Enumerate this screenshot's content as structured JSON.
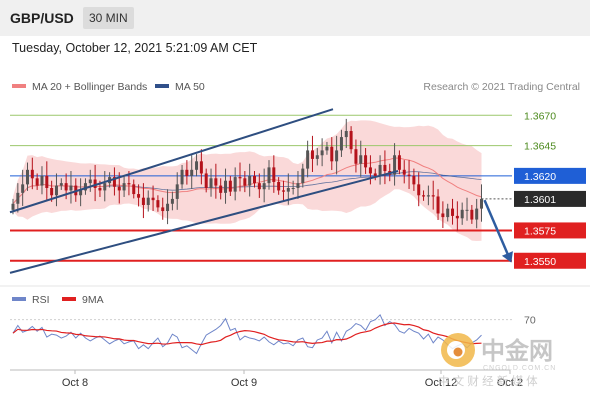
{
  "header": {
    "symbol": "GBP/USD",
    "timeframe": "30 MIN",
    "datetime": "Tuesday, October 12, 2021 5:21:09 AM CET"
  },
  "legend": {
    "ma20_label": "MA 20 + Bollinger Bands",
    "ma50_label": "MA 50",
    "credit": "Research © 2021 Trading Central",
    "rsi_label": "RSI",
    "rsi_ma_label": "9MA"
  },
  "colors": {
    "bull": "#555555",
    "bear": "#b5121b",
    "band": "#f7c4c4",
    "ma20": "#f08080",
    "ma50": "#30508a",
    "resistance": "#9bc76b",
    "support": "#e02020",
    "pivot": "#1f5fd6",
    "channel": "#2e4e80",
    "rsi": "#6f86c9",
    "rsi_ma": "#e02020"
  },
  "watermark": {
    "name": "中金网",
    "domain": "CNGOLD.COM.CN",
    "tagline": "中 文 财 经 新 媒 体"
  },
  "chart_data": {
    "type": "candlestick",
    "y_range": [
      1.353,
      1.369
    ],
    "x_labels": [
      "Oct 8",
      "Oct 9",
      "Oct 12",
      "Oct 2"
    ],
    "levels": [
      {
        "value": 1.367,
        "label": "1.3670",
        "kind": "resistance"
      },
      {
        "value": 1.3645,
        "label": "1.3645",
        "kind": "resistance"
      },
      {
        "value": 1.362,
        "label": "1.3620",
        "kind": "pivot"
      },
      {
        "value": 1.3601,
        "label": "1.3601",
        "kind": "last"
      },
      {
        "value": 1.3575,
        "label": "1.3575",
        "kind": "support"
      },
      {
        "value": 1.355,
        "label": "1.3550",
        "kind": "support"
      }
    ],
    "rsi_levels": [
      70
    ],
    "rsi_level_labels": [
      "70"
    ],
    "close": [
      1.3597,
      1.3606,
      1.3613,
      1.3625,
      1.3618,
      1.3612,
      1.362,
      1.361,
      1.3604,
      1.3612,
      1.3614,
      1.3608,
      1.3612,
      1.3604,
      1.3608,
      1.3614,
      1.3617,
      1.361,
      1.3608,
      1.3614,
      1.3619,
      1.3611,
      1.3608,
      1.3614,
      1.3613,
      1.3605,
      1.3602,
      1.3596,
      1.3602,
      1.36,
      1.3594,
      1.3591,
      1.3597,
      1.3601,
      1.3613,
      1.3625,
      1.362,
      1.3625,
      1.3632,
      1.3622,
      1.361,
      1.3618,
      1.3612,
      1.3606,
      1.3616,
      1.3607,
      1.3619,
      1.3618,
      1.3612,
      1.362,
      1.3614,
      1.3609,
      1.3614,
      1.3627,
      1.3615,
      1.3608,
      1.3607,
      1.361,
      1.361,
      1.3614,
      1.3626,
      1.3641,
      1.3634,
      1.3637,
      1.3641,
      1.3644,
      1.3632,
      1.3641,
      1.3652,
      1.3657,
      1.3642,
      1.363,
      1.3637,
      1.3627,
      1.3622,
      1.362,
      1.3629,
      1.3624,
      1.3621,
      1.3637,
      1.3625,
      1.3621,
      1.362,
      1.3613,
      1.3604,
      1.3603,
      1.3604,
      1.3603,
      1.3589,
      1.3586,
      1.3593,
      1.3587,
      1.3585,
      1.3592,
      1.3592,
      1.3584,
      1.3593,
      1.3601
    ],
    "rsi": [
      56,
      64,
      57,
      59,
      63,
      58,
      62,
      52,
      55,
      54,
      51,
      53,
      57,
      51,
      56,
      51,
      48,
      51,
      53,
      49,
      45,
      48,
      50,
      45,
      47,
      48,
      40,
      44,
      40,
      46,
      51,
      42,
      46,
      55,
      52,
      41,
      43,
      39,
      35,
      45,
      54,
      57,
      60,
      64,
      71,
      59,
      61,
      49,
      53,
      51,
      50,
      48,
      52,
      47,
      44,
      48,
      45,
      46,
      43,
      49,
      51,
      42,
      41,
      49,
      51,
      58,
      46,
      57,
      48,
      58,
      61,
      66,
      64,
      59,
      68,
      70,
      75,
      64,
      68,
      65,
      58,
      56,
      61,
      58,
      56,
      50,
      55,
      46,
      52,
      49,
      44,
      40,
      43,
      45,
      41,
      46,
      49,
      54
    ]
  }
}
